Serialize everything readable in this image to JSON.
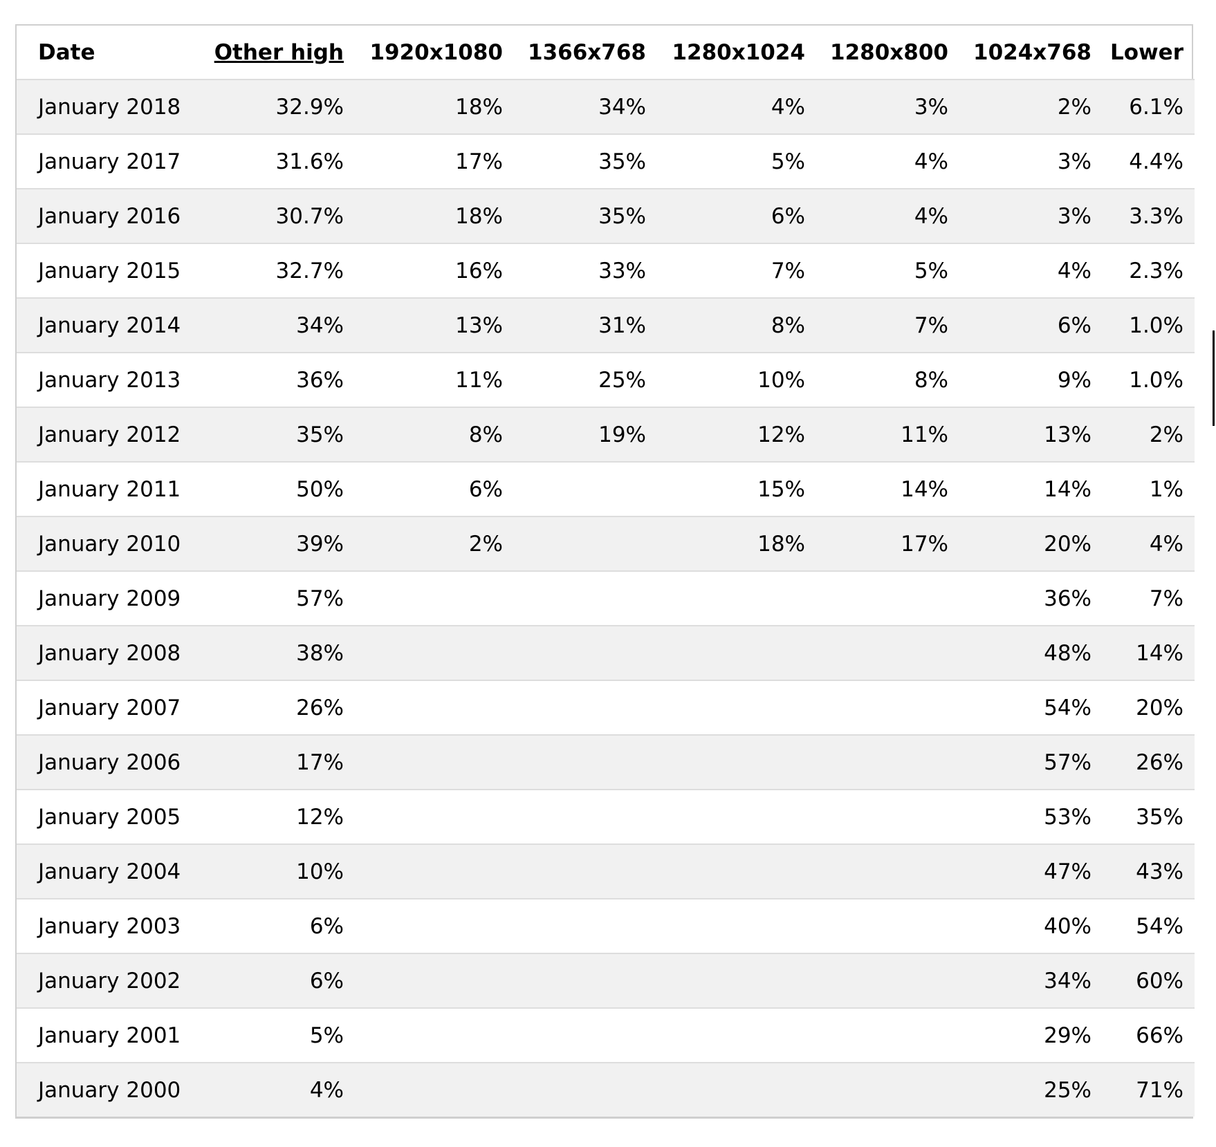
{
  "table": {
    "headers": [
      "Date",
      "Other high",
      "1920x1080",
      "1366x768",
      "1280x1024",
      "1280x800",
      "1024x768",
      "Lower"
    ],
    "rows": [
      [
        "January 2018",
        "32.9%",
        "18%",
        "34%",
        "4%",
        "3%",
        "2%",
        "6.1%"
      ],
      [
        "January 2017",
        "31.6%",
        "17%",
        "35%",
        "5%",
        "4%",
        "3%",
        "4.4%"
      ],
      [
        "January 2016",
        "30.7%",
        "18%",
        "35%",
        "6%",
        "4%",
        "3%",
        "3.3%"
      ],
      [
        "January 2015",
        "32.7%",
        "16%",
        "33%",
        "7%",
        "5%",
        "4%",
        "2.3%"
      ],
      [
        "January 2014",
        "34%",
        "13%",
        "31%",
        "8%",
        "7%",
        "6%",
        "1.0%"
      ],
      [
        "January 2013",
        "36%",
        "11%",
        "25%",
        "10%",
        "8%",
        "9%",
        "1.0%"
      ],
      [
        "January 2012",
        "35%",
        "8%",
        "19%",
        "12%",
        "11%",
        "13%",
        "2%"
      ],
      [
        "January 2011",
        "50%",
        "6%",
        "",
        "15%",
        "14%",
        "14%",
        "1%"
      ],
      [
        "January 2010",
        "39%",
        "2%",
        "",
        "18%",
        "17%",
        "20%",
        "4%"
      ],
      [
        "January 2009",
        "57%",
        "",
        "",
        "",
        "",
        "36%",
        "7%"
      ],
      [
        "January 2008",
        "38%",
        "",
        "",
        "",
        "",
        "48%",
        "14%"
      ],
      [
        "January 2007",
        "26%",
        "",
        "",
        "",
        "",
        "54%",
        "20%"
      ],
      [
        "January 2006",
        "17%",
        "",
        "",
        "",
        "",
        "57%",
        "26%"
      ],
      [
        "January 2005",
        "12%",
        "",
        "",
        "",
        "",
        "53%",
        "35%"
      ],
      [
        "January 2004",
        "10%",
        "",
        "",
        "",
        "",
        "47%",
        "43%"
      ],
      [
        "January 2003",
        "6%",
        "",
        "",
        "",
        "",
        "40%",
        "54%"
      ],
      [
        "January 2002",
        "6%",
        "",
        "",
        "",
        "",
        "34%",
        "60%"
      ],
      [
        "January 2001",
        "5%",
        "",
        "",
        "",
        "",
        "29%",
        "66%"
      ],
      [
        "January 2000",
        "4%",
        "",
        "",
        "",
        "",
        "25%",
        "71%"
      ]
    ]
  }
}
